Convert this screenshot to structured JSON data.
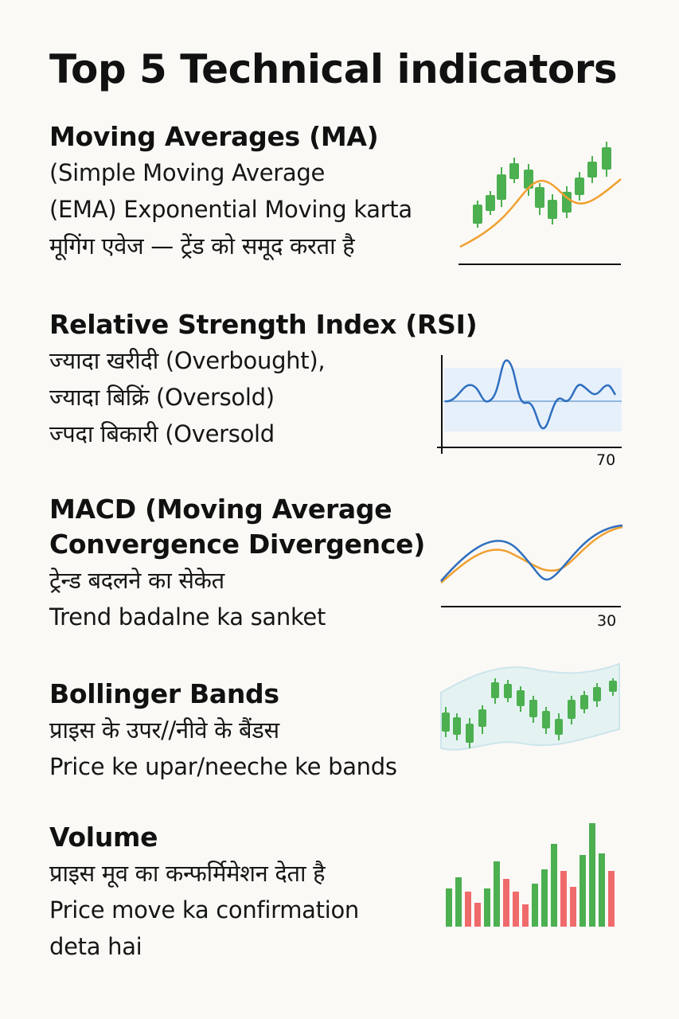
{
  "title": "Top 5 Technical indicators",
  "colors": {
    "background": "#fbf9f6",
    "text": "#111111",
    "candle_green": "#4caf50",
    "candle_red": "#ef6b6b",
    "line_orange": "#f0a030",
    "line_blue": "#2f6fbf",
    "band_fill": "#e4f3f1",
    "rsi_zone": "#e6f0fb"
  },
  "sections": {
    "ma": {
      "heading": "Moving Averages (MA)",
      "lines": [
        "(Simple Moving Average",
        "(EMA)  Exponential Moving  karta",
        "मूगिंग एवेज — ट्रेंड को समूद करता है"
      ],
      "icon": "candlestick-moving-average-icon"
    },
    "rsi": {
      "heading": "Relative Strength Index (RSI)",
      "lines": [
        "ज्यादा खरीदी (Overbought),",
        "ज्यादा बिक्रिं (Oversold)",
        "ज्पदा  बिकारी (Oversold"
      ],
      "icon": "rsi-oscillator-icon",
      "axis_label": "70"
    },
    "macd": {
      "heading_line1": "MACD (Moving Average",
      "heading_line2": "Convergence Divergence)",
      "lines": [
        "ट्रेन्ड बदलने का सेकेत",
        "Trend badalne ka sanket"
      ],
      "icon": "macd-crossover-icon",
      "axis_label": "30"
    },
    "bollinger": {
      "heading": "Bollinger Bands",
      "lines": [
        "प्राइस के उपर//नीवे के बैंडस",
        "Price ke upar/neeche ke bands"
      ],
      "icon": "bollinger-bands-icon"
    },
    "volume": {
      "heading": "Volume",
      "lines": [
        "प्राइस मूव का कन्फर्मिमेशन देता है",
        "Price move ka confirmation",
        "deta hai"
      ],
      "icon": "volume-bars-icon"
    }
  }
}
